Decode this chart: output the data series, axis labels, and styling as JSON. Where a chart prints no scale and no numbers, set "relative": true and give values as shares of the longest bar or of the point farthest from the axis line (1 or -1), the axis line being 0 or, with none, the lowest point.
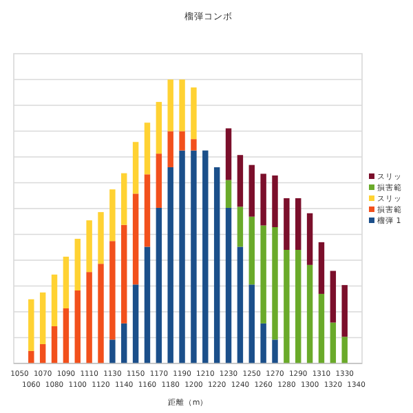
{
  "chart_data": {
    "type": "bar",
    "title": "榴弾コンボ",
    "xlabel": "距離（m）",
    "relative": true,
    "stacked": true,
    "grid": "y",
    "legend": "right",
    "categories": [
      "1050",
      "1060",
      "1070",
      "1080",
      "1090",
      "1100",
      "1110",
      "1120",
      "1130",
      "1140",
      "1150",
      "1160",
      "1170",
      "1180",
      "1190",
      "1200",
      "1210",
      "1220",
      "1230",
      "1240",
      "1250",
      "1260",
      "1270",
      "1280",
      "1290",
      "1300",
      "1310",
      "1320",
      "1330",
      "1340"
    ],
    "series": [
      {
        "name": "榴弾 1",
        "color": "#1b4f8a",
        "values": [
          null,
          null,
          null,
          null,
          null,
          null,
          null,
          null,
          0.084,
          0.141,
          0.278,
          0.411,
          0.548,
          0.691,
          0.75,
          0.75,
          0.75,
          0.691,
          0.548,
          0.411,
          0.278,
          0.141,
          0.084,
          null,
          null,
          null,
          null,
          null,
          null,
          null
        ]
      },
      {
        "name": "損害範",
        "color": "#f2501c",
        "values": [
          null,
          0.044,
          0.068,
          0.131,
          0.194,
          0.257,
          0.322,
          0.351,
          0.347,
          0.347,
          0.32,
          0.255,
          0.191,
          0.127,
          0.068,
          0.04,
          null,
          null,
          null,
          null,
          null,
          null,
          null,
          null,
          null,
          null,
          null,
          null,
          null,
          null
        ]
      },
      {
        "name": "スリッ",
        "color": "#ffd233",
        "values": [
          null,
          0.182,
          0.182,
          0.182,
          0.182,
          0.182,
          0.182,
          0.182,
          0.182,
          0.182,
          0.182,
          0.182,
          0.182,
          0.182,
          0.182,
          0.182,
          null,
          null,
          null,
          null,
          null,
          null,
          null,
          null,
          null,
          null,
          null,
          null,
          null,
          null
        ]
      },
      {
        "name": "損害範",
        "color": "#6aaa2a",
        "values": [
          null,
          null,
          null,
          null,
          null,
          null,
          null,
          null,
          null,
          null,
          null,
          null,
          null,
          null,
          null,
          null,
          null,
          null,
          0.098,
          0.141,
          0.239,
          0.345,
          0.396,
          0.4,
          0.4,
          0.347,
          0.245,
          0.144,
          0.094,
          null
        ]
      },
      {
        "name": "スリッ",
        "color": "#7b0f2b",
        "values": [
          null,
          null,
          null,
          null,
          null,
          null,
          null,
          null,
          null,
          null,
          null,
          null,
          null,
          null,
          null,
          null,
          null,
          null,
          0.182,
          0.182,
          0.182,
          0.182,
          0.182,
          0.182,
          0.182,
          0.182,
          0.182,
          0.182,
          0.182,
          null
        ]
      }
    ]
  }
}
